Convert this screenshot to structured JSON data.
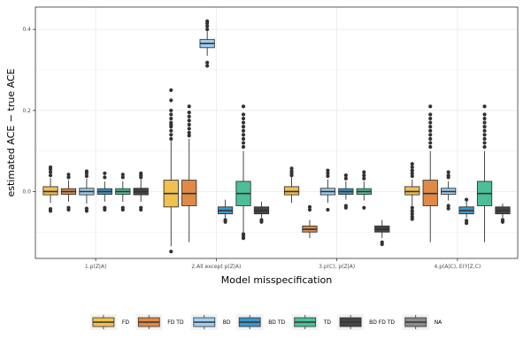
{
  "chart_data": {
    "type": "boxplot",
    "xlabel": "Model misspecification",
    "ylabel": "estimated ACE − true ACE",
    "ylim": [
      -0.165,
      0.455
    ],
    "y_ticks": [
      0.0,
      0.2,
      0.4
    ],
    "y_tick_labels": [
      "0.0",
      "0.2",
      "0.4"
    ],
    "grid": true,
    "legend_position": "bottom",
    "categories": [
      "1.p(Z|A)",
      "2.All except p(Z|A)",
      "3.p(C), p(Z|A)",
      "4.p(A|C), E(Y|Z,C)"
    ],
    "series": [
      {
        "name": "FD",
        "color": "#F0C050",
        "boxes": [
          {
            "q1": -0.008,
            "median": 0.0,
            "q3": 0.012,
            "wlo": -0.028,
            "whi": 0.033,
            "outliers": [
              -0.048,
              -0.043,
              0.04,
              0.048,
              0.055,
              0.06
            ]
          },
          {
            "q1": -0.038,
            "median": -0.005,
            "q3": 0.028,
            "wlo": -0.135,
            "whi": 0.125,
            "outliers": [
              -0.148,
              0.13,
              0.14,
              0.15,
              0.16,
              0.165,
              0.17,
              0.18,
              0.19,
              0.2,
              0.225,
              0.25
            ]
          },
          {
            "q1": -0.008,
            "median": 0.0,
            "q3": 0.012,
            "wlo": -0.028,
            "whi": 0.035,
            "outliers": [
              0.04,
              0.045,
              0.05,
              0.057
            ]
          },
          {
            "q1": -0.008,
            "median": 0.0,
            "q3": 0.012,
            "wlo": -0.035,
            "whi": 0.03,
            "outliers": [
              -0.068,
              -0.062,
              -0.055,
              -0.048,
              -0.04,
              0.038,
              0.045,
              0.052,
              0.06,
              0.068
            ]
          }
        ]
      },
      {
        "name": "FD TD",
        "color": "#E08A47",
        "boxes": [
          {
            "q1": -0.007,
            "median": 0.0,
            "q3": 0.007,
            "wlo": -0.025,
            "whi": 0.028,
            "outliers": [
              -0.045,
              -0.04,
              0.035,
              0.042
            ]
          },
          {
            "q1": -0.035,
            "median": -0.005,
            "q3": 0.028,
            "wlo": -0.125,
            "whi": 0.13,
            "outliers": [
              0.138,
              0.145,
              0.155,
              0.165,
              0.175,
              0.185,
              0.195,
              0.21
            ]
          },
          {
            "q1": -0.1,
            "median": -0.093,
            "q3": -0.085,
            "wlo": -0.115,
            "whi": -0.07,
            "outliers": [
              -0.045,
              -0.038
            ]
          },
          {
            "q1": -0.035,
            "median": -0.005,
            "q3": 0.028,
            "wlo": -0.125,
            "whi": 0.1,
            "outliers": [
              0.11,
              0.12,
              0.13,
              0.14,
              0.15,
              0.16,
              0.17,
              0.18,
              0.19,
              0.21
            ]
          }
        ]
      },
      {
        "name": "BD",
        "color": "#9ECFF2",
        "boxes": [
          {
            "q1": -0.008,
            "median": 0.0,
            "q3": 0.008,
            "wlo": -0.03,
            "whi": 0.032,
            "outliers": [
              -0.048,
              -0.042,
              0.038,
              0.045,
              0.05
            ]
          },
          {
            "q1": 0.355,
            "median": 0.365,
            "q3": 0.375,
            "wlo": 0.335,
            "whi": 0.395,
            "outliers": [
              0.31,
              0.318,
              0.4,
              0.408,
              0.415,
              0.42
            ]
          },
          {
            "q1": -0.008,
            "median": 0.0,
            "q3": 0.008,
            "wlo": -0.028,
            "whi": 0.03,
            "outliers": [
              -0.045,
              0.038,
              0.045,
              0.052
            ]
          },
          {
            "q1": -0.007,
            "median": 0.0,
            "q3": 0.008,
            "wlo": -0.022,
            "whi": 0.025,
            "outliers": [
              -0.042,
              -0.035,
              0.035,
              0.04,
              0.048
            ]
          }
        ]
      },
      {
        "name": "BD TD",
        "color": "#3D96C8",
        "boxes": [
          {
            "q1": -0.007,
            "median": 0.0,
            "q3": 0.007,
            "wlo": -0.025,
            "whi": 0.025,
            "outliers": [
              -0.045,
              -0.04,
              0.035,
              0.045
            ]
          },
          {
            "q1": -0.055,
            "median": -0.047,
            "q3": -0.038,
            "wlo": -0.065,
            "whi": -0.02,
            "outliers": [
              -0.07,
              -0.075
            ]
          },
          {
            "q1": -0.007,
            "median": 0.0,
            "q3": 0.007,
            "wlo": -0.02,
            "whi": 0.025,
            "outliers": [
              -0.04,
              -0.035,
              0.032,
              0.04
            ]
          },
          {
            "q1": -0.055,
            "median": -0.047,
            "q3": -0.038,
            "wlo": -0.065,
            "whi": -0.025,
            "outliers": [
              -0.072,
              -0.078,
              -0.02
            ]
          }
        ]
      },
      {
        "name": "TD",
        "color": "#4CBF9A",
        "boxes": [
          {
            "q1": -0.007,
            "median": 0.0,
            "q3": 0.007,
            "wlo": -0.025,
            "whi": 0.025,
            "outliers": [
              -0.045,
              -0.04,
              0.035,
              0.042
            ]
          },
          {
            "q1": -0.035,
            "median": -0.005,
            "q3": 0.025,
            "wlo": -0.1,
            "whi": 0.1,
            "outliers": [
              -0.105,
              -0.11,
              -0.115,
              0.11,
              0.12,
              0.13,
              0.14,
              0.15,
              0.16,
              0.17,
              0.18,
              0.19,
              0.21
            ]
          },
          {
            "q1": -0.007,
            "median": 0.0,
            "q3": 0.007,
            "wlo": -0.022,
            "whi": 0.025,
            "outliers": [
              -0.04,
              0.032,
              0.04,
              0.048
            ]
          },
          {
            "q1": -0.035,
            "median": -0.005,
            "q3": 0.025,
            "wlo": -0.125,
            "whi": 0.1,
            "outliers": [
              0.11,
              0.12,
              0.13,
              0.14,
              0.15,
              0.16,
              0.17,
              0.18,
              0.19,
              0.21
            ]
          }
        ]
      },
      {
        "name": "BD FD TD",
        "color": "#454545",
        "boxes": [
          {
            "q1": -0.008,
            "median": 0.0,
            "q3": 0.008,
            "wlo": -0.025,
            "whi": 0.03,
            "outliers": [
              -0.045,
              -0.04,
              0.035,
              0.04,
              0.045
            ]
          },
          {
            "q1": -0.055,
            "median": -0.047,
            "q3": -0.038,
            "wlo": -0.065,
            "whi": -0.025,
            "outliers": [
              -0.07,
              -0.075
            ]
          },
          {
            "q1": -0.1,
            "median": -0.093,
            "q3": -0.085,
            "wlo": -0.115,
            "whi": -0.07,
            "outliers": [
              -0.125,
              -0.13
            ]
          },
          {
            "q1": -0.055,
            "median": -0.047,
            "q3": -0.038,
            "wlo": -0.065,
            "whi": -0.03,
            "outliers": [
              -0.07,
              -0.075
            ]
          }
        ]
      },
      {
        "name": "NA",
        "color": "#8C8C8C",
        "boxes": []
      }
    ]
  }
}
